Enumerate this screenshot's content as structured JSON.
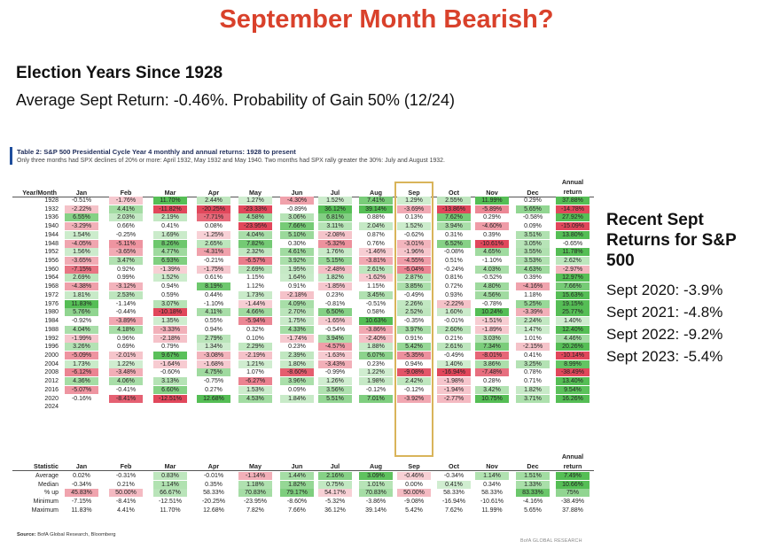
{
  "title": "September Month Bearish?",
  "election": {
    "heading": "Election Years Since 1928",
    "summary": "Average Sept Return: -0.46%. Probability of Gain 50% (12/24)"
  },
  "table": {
    "title": "Table 2: S&P 500 Presidential Cycle Year 4 monthly and annual returns: 1928 to present",
    "subtitle": "Only three months had SPX declines of 20% or more: April 1932, May 1932 and May 1940. Two months had SPX rally greater the 30%: July and August 1932.",
    "corner": "Year/Month",
    "columns": [
      "Jan",
      "Feb",
      "Mar",
      "Apr",
      "May",
      "Jun",
      "Jul",
      "Aug",
      "Sep",
      "Oct",
      "Nov",
      "Dec"
    ],
    "annual_header": [
      "Annual",
      "return"
    ],
    "rows": [
      {
        "year": "1928",
        "values": [
          "-0.51%",
          "-1.76%",
          "11.70%",
          "2.44%",
          "1.27%",
          "-4.30%",
          "1.52%",
          "7.41%",
          "1.29%",
          "2.55%",
          "11.99%",
          "0.29%",
          "37.88%"
        ]
      },
      {
        "year": "1932",
        "values": [
          "-2.22%",
          "4.41%",
          "-11.82%",
          "-20.25%",
          "-23.33%",
          "-0.89%",
          "36.12%",
          "39.14%",
          "-3.69%",
          "-13.86%",
          "-5.89%",
          "5.65%",
          "-14.78%"
        ]
      },
      {
        "year": "1936",
        "values": [
          "6.55%",
          "2.03%",
          "2.19%",
          "-7.71%",
          "4.58%",
          "3.06%",
          "6.81%",
          "0.88%",
          "0.13%",
          "7.62%",
          "0.29%",
          "-0.58%",
          "27.92%"
        ]
      },
      {
        "year": "1940",
        "values": [
          "-3.29%",
          "0.66%",
          "0.41%",
          "0.08%",
          "-23.95%",
          "7.66%",
          "3.11%",
          "2.04%",
          "1.52%",
          "3.94%",
          "-4.60%",
          "0.09%",
          "-15.09%"
        ]
      },
      {
        "year": "1944",
        "values": [
          "1.54%",
          "-0.25%",
          "1.69%",
          "-1.25%",
          "4.04%",
          "5.10%",
          "-2.08%",
          "0.87%",
          "-0.62%",
          "0.31%",
          "0.39%",
          "3.51%",
          "13.80%"
        ]
      },
      {
        "year": "1948",
        "values": [
          "-4.05%",
          "-5.11%",
          "8.26%",
          "2.65%",
          "7.82%",
          "0.30%",
          "-5.32%",
          "0.76%",
          "-3.01%",
          "6.52%",
          "-10.61%",
          "3.05%",
          "-0.65%"
        ]
      },
      {
        "year": "1952",
        "values": [
          "1.56%",
          "-3.65%",
          "4.77%",
          "-4.31%",
          "2.32%",
          "4.61%",
          "1.76%",
          "-1.46%",
          "-1.96%",
          "-0.08%",
          "4.65%",
          "3.55%",
          "11.78%"
        ]
      },
      {
        "year": "1956",
        "values": [
          "-3.65%",
          "3.47%",
          "6.93%",
          "-0.21%",
          "-6.57%",
          "3.92%",
          "5.15%",
          "-3.81%",
          "-4.55%",
          "0.51%",
          "-1.10%",
          "3.53%",
          "2.62%"
        ]
      },
      {
        "year": "1960",
        "values": [
          "-7.15%",
          "0.92%",
          "-1.39%",
          "-1.75%",
          "2.69%",
          "1.95%",
          "-2.48%",
          "2.61%",
          "-6.04%",
          "-0.24%",
          "4.03%",
          "4.63%",
          "-2.97%"
        ]
      },
      {
        "year": "1964",
        "values": [
          "2.69%",
          "0.99%",
          "1.52%",
          "0.61%",
          "1.15%",
          "1.64%",
          "1.82%",
          "-1.62%",
          "2.87%",
          "0.81%",
          "-0.52%",
          "0.39%",
          "12.97%"
        ]
      },
      {
        "year": "1968",
        "values": [
          "-4.38%",
          "-3.12%",
          "0.94%",
          "8.19%",
          "1.12%",
          "0.91%",
          "-1.85%",
          "1.15%",
          "3.85%",
          "0.72%",
          "4.80%",
          "-4.16%",
          "7.66%"
        ]
      },
      {
        "year": "1972",
        "values": [
          "1.81%",
          "2.53%",
          "0.59%",
          "0.44%",
          "1.73%",
          "-2.18%",
          "0.23%",
          "3.45%",
          "-0.49%",
          "0.93%",
          "4.56%",
          "1.18%",
          "15.63%"
        ]
      },
      {
        "year": "1976",
        "values": [
          "11.83%",
          "-1.14%",
          "3.07%",
          "-1.10%",
          "-1.44%",
          "4.09%",
          "-0.81%",
          "-0.51%",
          "2.26%",
          "-2.22%",
          "-0.78%",
          "5.25%",
          "19.15%"
        ]
      },
      {
        "year": "1980",
        "values": [
          "5.76%",
          "-0.44%",
          "-10.18%",
          "4.11%",
          "4.66%",
          "2.70%",
          "6.50%",
          "0.58%",
          "2.52%",
          "1.60%",
          "10.24%",
          "-3.39%",
          "25.77%"
        ]
      },
      {
        "year": "1984",
        "values": [
          "-0.92%",
          "-3.89%",
          "1.35%",
          "0.55%",
          "-5.94%",
          "1.75%",
          "-1.65%",
          "10.63%",
          "-0.35%",
          "-0.01%",
          "-1.51%",
          "2.24%",
          "1.40%"
        ]
      },
      {
        "year": "1988",
        "values": [
          "4.04%",
          "4.18%",
          "-3.33%",
          "0.94%",
          "0.32%",
          "4.33%",
          "-0.54%",
          "-3.86%",
          "3.97%",
          "2.60%",
          "-1.89%",
          "1.47%",
          "12.40%"
        ]
      },
      {
        "year": "1992",
        "values": [
          "-1.99%",
          "0.96%",
          "-2.18%",
          "2.79%",
          "0.10%",
          "-1.74%",
          "3.94%",
          "-2.40%",
          "0.91%",
          "0.21%",
          "3.03%",
          "1.01%",
          "4.46%"
        ]
      },
      {
        "year": "1996",
        "values": [
          "3.26%",
          "0.69%",
          "0.79%",
          "1.34%",
          "2.29%",
          "0.23%",
          "-4.57%",
          "1.88%",
          "5.42%",
          "2.61%",
          "7.34%",
          "-2.15%",
          "20.26%"
        ]
      },
      {
        "year": "2000",
        "values": [
          "-5.09%",
          "-2.01%",
          "9.67%",
          "-3.08%",
          "-2.19%",
          "2.39%",
          "-1.63%",
          "6.07%",
          "-5.35%",
          "-0.49%",
          "-8.01%",
          "0.41%",
          "-10.14%"
        ]
      },
      {
        "year": "2004",
        "values": [
          "1.73%",
          "1.22%",
          "-1.64%",
          "-1.68%",
          "1.21%",
          "1.80%",
          "-3.43%",
          "0.23%",
          "0.94%",
          "1.40%",
          "3.86%",
          "3.25%",
          "8.99%"
        ]
      },
      {
        "year": "2008",
        "values": [
          "-6.12%",
          "-3.48%",
          "-0.60%",
          "4.75%",
          "1.07%",
          "-8.60%",
          "-0.99%",
          "1.22%",
          "-9.08%",
          "-16.94%",
          "-7.48%",
          "0.78%",
          "-38.49%"
        ]
      },
      {
        "year": "2012",
        "values": [
          "4.36%",
          "4.06%",
          "3.13%",
          "-0.75%",
          "-6.27%",
          "3.96%",
          "1.26%",
          "1.98%",
          "2.42%",
          "-1.98%",
          "0.28%",
          "0.71%",
          "13.40%"
        ]
      },
      {
        "year": "2016",
        "values": [
          "-5.07%",
          "-0.41%",
          "6.60%",
          "0.27%",
          "1.53%",
          "0.09%",
          "3.56%",
          "-0.12%",
          "-0.12%",
          "-1.94%",
          "3.42%",
          "1.82%",
          "9.54%"
        ]
      },
      {
        "year": "2020",
        "values": [
          "-0.16%",
          "-8.41%",
          "-12.51%",
          "12.68%",
          "4.53%",
          "1.84%",
          "5.51%",
          "7.01%",
          "-3.92%",
          "-2.77%",
          "10.75%",
          "3.71%",
          "16.26%"
        ]
      },
      {
        "year": "2024",
        "values": [
          "",
          "",
          "",
          "",
          "",
          "",
          "",
          "",
          "",
          "",
          "",
          "",
          ""
        ]
      }
    ],
    "stats_corner": "Statistic",
    "stats_rows": [
      {
        "label": "Average",
        "values": [
          "0.02%",
          "-0.31%",
          "0.83%",
          "-0.01%",
          "-1.14%",
          "1.44%",
          "2.16%",
          "3.09%",
          "-0.46%",
          "-0.34%",
          "1.14%",
          "1.51%",
          "7.49%"
        ]
      },
      {
        "label": "Median",
        "values": [
          "-0.34%",
          "0.21%",
          "1.14%",
          "0.35%",
          "1.18%",
          "1.82%",
          "0.75%",
          "1.01%",
          "0.00%",
          "0.41%",
          "0.34%",
          "1.33%",
          "10.66%"
        ]
      },
      {
        "label": "% up",
        "values": [
          "45.83%",
          "50.00%",
          "66.67%",
          "58.33%",
          "70.83%",
          "79.17%",
          "54.17%",
          "70.83%",
          "50.00%",
          "58.33%",
          "58.33%",
          "83.33%",
          "75%"
        ]
      },
      {
        "label": "Minimum",
        "values": [
          "-7.15%",
          "-8.41%",
          "-12.51%",
          "-20.25%",
          "-23.95%",
          "-8.60%",
          "-5.32%",
          "-3.86%",
          "-9.08%",
          "-16.94%",
          "-10.61%",
          "-4.16%",
          "-38.49%"
        ]
      },
      {
        "label": "Maximum",
        "values": [
          "11.83%",
          "4.41%",
          "11.70%",
          "12.68%",
          "7.82%",
          "7.66%",
          "36.12%",
          "39.14%",
          "5.42%",
          "7.62%",
          "11.99%",
          "5.65%",
          "37.88%"
        ]
      }
    ],
    "source_label": "Source:",
    "source_text": "BofA Global Research, Bloomberg",
    "watermark": "BofA GLOBAL RESEARCH"
  },
  "recent": {
    "heading": "Recent Sept Returns for S&P 500",
    "items": [
      "Sept 2020: -3.9%",
      "Sept 2021: -4.8%",
      "Sept 2022: -9.2%",
      "Sept 2023: -5.4%"
    ]
  },
  "colors": {
    "title": "#d9412b",
    "positive_strong": "#5cb85c",
    "negative_strong": "#e0475b",
    "highlight_box": "#d9b45a",
    "table_title": "#1f2d5a"
  }
}
